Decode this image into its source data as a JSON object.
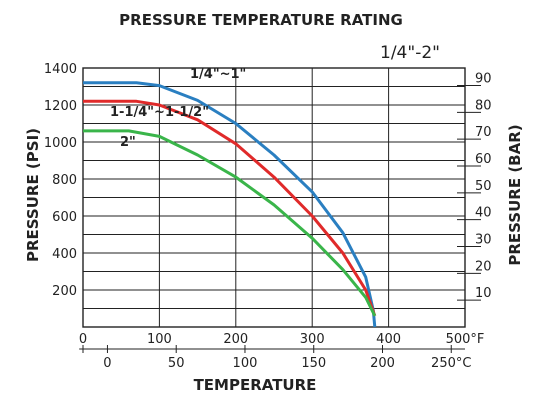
{
  "chart_data": {
    "type": "line",
    "title": "PRESSURE TEMPERATURE RATING",
    "subtitle": "1/4\"-2\"",
    "xlabel": "TEMPERATURE",
    "ylabel": "PRESSURE (PSI)",
    "ylabel_right": "PRESSURE (BAR)",
    "x_unit_primary": "°F",
    "x_unit_secondary": "°C",
    "xlim": [
      0,
      500
    ],
    "ylim": [
      0,
      1400
    ],
    "grid": true,
    "y_ticks": [
      "1400",
      "1200",
      "1000",
      "800",
      "600",
      "400",
      "200"
    ],
    "y_right_ticks": [
      "90",
      "80",
      "70",
      "60",
      "50",
      "40",
      "30",
      "20",
      "10"
    ],
    "x_ticks_f": [
      "0",
      "100",
      "200",
      "300",
      "400",
      "500"
    ],
    "x_ticks_c": [
      "0",
      "50",
      "100",
      "150",
      "200",
      "250"
    ],
    "series": [
      {
        "name": "1/4\"~1\"",
        "color": "#2a7fc1",
        "x": [
          0,
          70,
          100,
          150,
          200,
          250,
          300,
          340,
          370,
          380,
          382
        ],
        "y": [
          1320,
          1320,
          1305,
          1225,
          1100,
          930,
          730,
          510,
          270,
          90,
          0
        ]
      },
      {
        "name": "1-1/4\"~1-1/2\"",
        "color": "#e02a2a",
        "x": [
          0,
          70,
          100,
          150,
          200,
          250,
          300,
          340,
          370,
          382
        ],
        "y": [
          1220,
          1220,
          1200,
          1120,
          990,
          810,
          600,
          400,
          200,
          60
        ]
      },
      {
        "name": "2\"",
        "color": "#3ab54a",
        "x": [
          0,
          60,
          100,
          150,
          200,
          250,
          300,
          340,
          370,
          382
        ],
        "y": [
          1060,
          1060,
          1030,
          930,
          810,
          660,
          480,
          310,
          160,
          60
        ]
      }
    ]
  }
}
